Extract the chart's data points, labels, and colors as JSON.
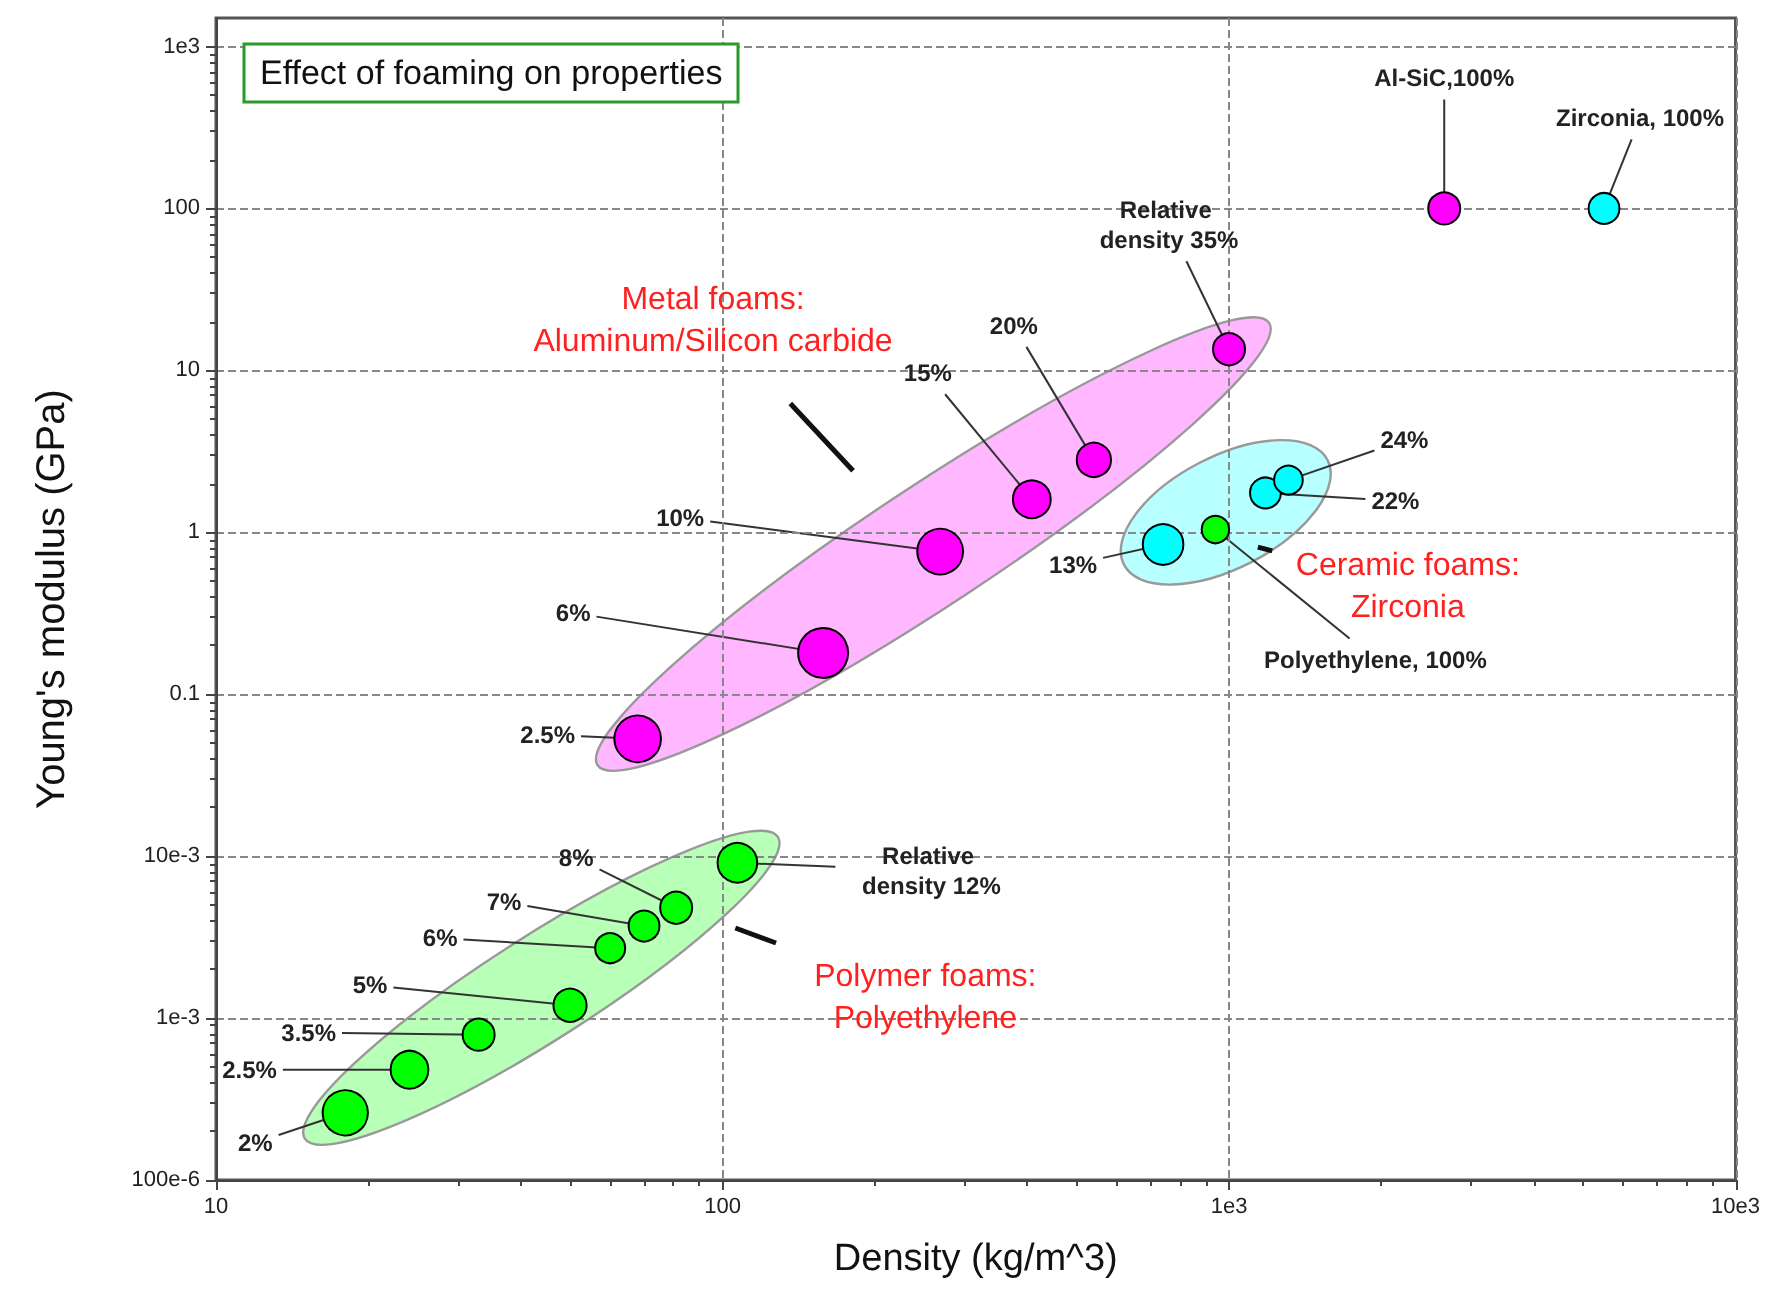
{
  "chart_data": {
    "type": "bubble",
    "title": "Effect of foaming on properties",
    "xlabel": "Density (kg/m^3)",
    "ylabel": "Young's modulus (GPa)",
    "log": "xy",
    "grid": true,
    "marker": "circle",
    "xlim": [
      10,
      10000
    ],
    "xticks": [
      10,
      100,
      {
        "value": 1000,
        "label": "1e3"
      },
      {
        "value": 10000,
        "label": "10e3"
      }
    ],
    "ylim": [
      0.0001,
      1500
    ],
    "yticks": [
      {
        "value": 0.0001,
        "label": "100e-6"
      },
      {
        "value": 0.001,
        "label": "1e-3"
      },
      {
        "value": 0.01,
        "label": "10e-3"
      },
      0.1,
      1,
      10,
      100,
      {
        "value": 1000,
        "label": "1e3"
      }
    ],
    "series": [
      {
        "color": "#ff00ff",
        "x": [
          68,
          158,
          269,
          408,
          541,
          1000,
          2660
        ],
        "values": [
          0.053,
          0.18,
          0.76,
          1.6,
          2.8,
          13.5,
          100
        ],
        "sizes": [
          0.87,
          1,
          0.84,
          0.57,
          0.47,
          0.41,
          0.41
        ]
      },
      {
        "color": "#00ffff",
        "x": [
          741,
          1180,
          1310,
          5500
        ],
        "values": [
          0.84,
          1.75,
          2.1,
          100
        ],
        "sizes": [
          0.66,
          0.38,
          0.33,
          0.38
        ]
      },
      {
        "color": "#00ff00",
        "x": [
          18,
          24.1,
          33,
          50,
          60,
          70,
          81,
          107,
          940
        ],
        "values": [
          0.00026,
          0.00048,
          0.00079,
          0.0012,
          0.0027,
          0.0037,
          0.0048,
          0.0091,
          1.04
        ],
        "sizes": [
          0.82,
          0.57,
          0.41,
          0.44,
          0.36,
          0.38,
          0.41,
          0.63,
          0.3
        ]
      }
    ],
    "annotations": [
      "Metal foams: Aluminum/Silicon carbide",
      "Ceramic foams: Zirconia",
      "Polymer foams: Polyethylene",
      {
        "text": "2.5%",
        "x": 68,
        "y": 0.053
      },
      {
        "text": "6%",
        "x": 158,
        "y": 0.18
      },
      {
        "text": "10%",
        "x": 269,
        "y": 0.76
      },
      {
        "text": "15%",
        "x": 408,
        "y": 1.6
      },
      {
        "text": "20%",
        "x": 541,
        "y": 2.8
      },
      {
        "text": "Relative density 35%",
        "x": 1000,
        "y": 13.5
      },
      {
        "text": "Al-SiC,100%",
        "x": 2660,
        "y": 100
      },
      {
        "text": "13%",
        "x": 741,
        "y": 0.84
      },
      {
        "text": "22%",
        "x": 1180,
        "y": 1.75
      },
      {
        "text": "24%",
        "x": 1310,
        "y": 2.1
      },
      {
        "text": "Zirconia, 100%",
        "x": 5500,
        "y": 100
      },
      {
        "text": "2%",
        "x": 18,
        "y": 0.00026
      },
      {
        "text": "2.5%",
        "x": 24.1,
        "y": 0.00048
      },
      {
        "text": "3.5%",
        "x": 33,
        "y": 0.00079
      },
      {
        "text": "5%",
        "x": 50,
        "y": 0.0012
      },
      {
        "text": "6%",
        "x": 60,
        "y": 0.0027
      },
      {
        "text": "7%",
        "x": 70,
        "y": 0.0037
      },
      {
        "text": "8%",
        "x": 81,
        "y": 0.0048
      },
      {
        "text": "Relative density 12%",
        "x": 107,
        "y": 0.0091
      },
      {
        "text": "Polyethylene, 100%",
        "x": 940,
        "y": 1.04
      }
    ]
  }
}
